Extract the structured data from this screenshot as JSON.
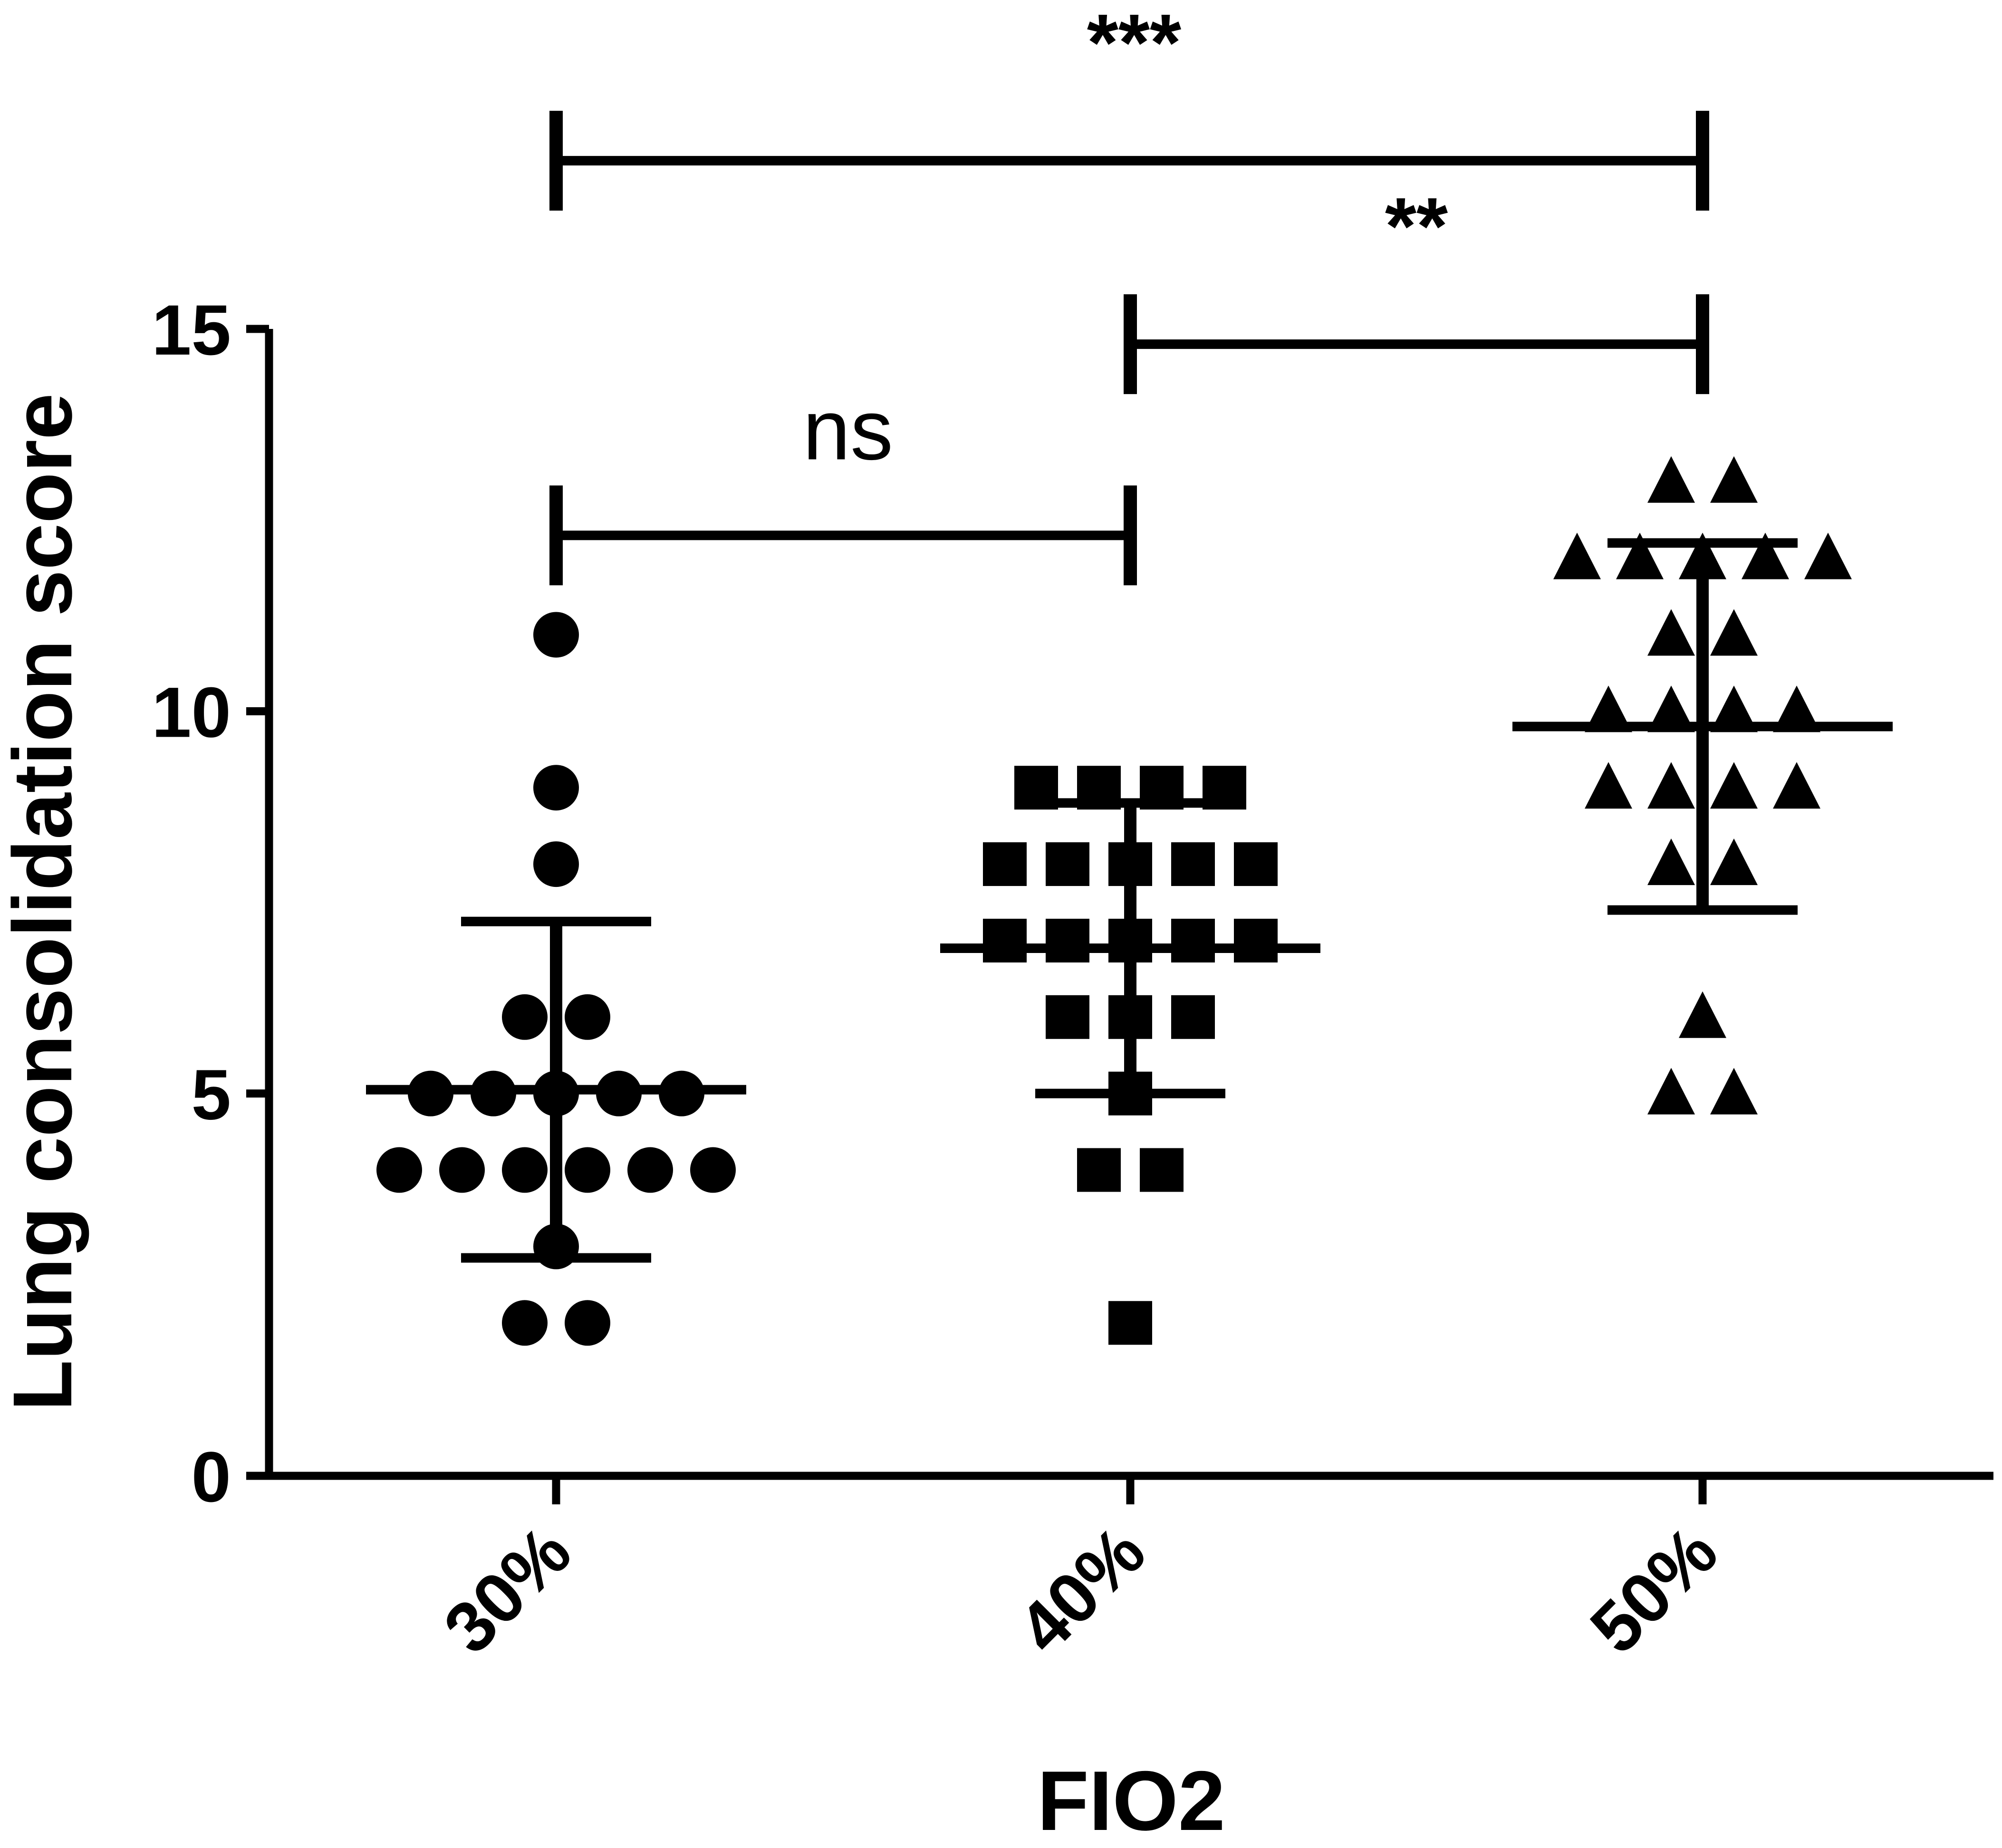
{
  "chart_data": {
    "type": "scatter",
    "subtype": "scatter-dot-plot-with-mean-and-sd",
    "xlabel": "FIO2",
    "ylabel": "Lung consolidation score",
    "categories": [
      "30%",
      "40%",
      "50%"
    ],
    "ylim": [
      0,
      15
    ],
    "yticks": [
      "0",
      "5",
      "10",
      "15"
    ],
    "grid": false,
    "legend": "none",
    "colors": {
      "ink": "#000000",
      "background": "#ffffff"
    },
    "series": [
      {
        "category": "30%",
        "marker": "circle",
        "values": [
          11,
          9,
          8,
          6,
          6,
          5,
          5,
          5,
          5,
          5,
          4,
          4,
          4,
          4,
          4,
          4,
          3,
          2,
          2
        ],
        "mean": 5.05,
        "sd": 2.2
      },
      {
        "category": "40%",
        "marker": "square",
        "values": [
          9,
          9,
          9,
          9,
          8,
          8,
          8,
          8,
          8,
          7,
          7,
          7,
          7,
          7,
          6,
          6,
          6,
          5,
          4,
          4,
          2
        ],
        "mean": 6.9,
        "sd": 1.9
      },
      {
        "category": "50%",
        "marker": "triangle",
        "values": [
          13,
          13,
          12,
          12,
          12,
          12,
          12,
          11,
          11,
          10,
          10,
          10,
          10,
          9,
          9,
          9,
          9,
          8,
          8,
          6,
          5,
          5
        ],
        "mean": 9.8,
        "sd": 2.4
      }
    ],
    "annotations": [
      {
        "from": "30%",
        "to": "40%",
        "label": "ns",
        "level": 12.3
      },
      {
        "from": "40%",
        "to": "50%",
        "label": "**",
        "level": 14.8
      },
      {
        "from": "30%",
        "to": "50%",
        "label": "***",
        "level": 17.2
      }
    ]
  }
}
